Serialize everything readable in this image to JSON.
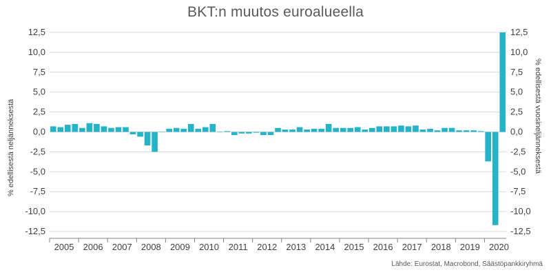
{
  "chart_data": {
    "type": "bar",
    "title": "BKT:n muutos euroalueella",
    "ylabel_left": "% edellisestä neljänneksestä",
    "ylabel_right": "% edellisestä vuosineljänneksestä",
    "source": "Lähde: Eurostat, Macrobond, Säästöpankkiryhmä",
    "ylim": [
      -12.5,
      12.5
    ],
    "yticks": [
      "12,5",
      "10,0",
      "7,5",
      "5,0",
      "2,5",
      "0,0",
      "-2,5",
      "-5,0",
      "-7,5",
      "-10,0",
      "-12,5"
    ],
    "ytick_values": [
      12.5,
      10,
      7.5,
      5,
      2.5,
      0,
      -2.5,
      -5,
      -7.5,
      -10,
      -12.5
    ],
    "x_labels": [
      "2005",
      "2006",
      "2007",
      "2008",
      "2009",
      "2010",
      "2011",
      "2012",
      "2013",
      "2014",
      "2015",
      "2016",
      "2017",
      "2018",
      "2019",
      "2020"
    ],
    "color": "#26B3C8",
    "grid": true,
    "values": [
      0.7,
      0.6,
      0.9,
      1.0,
      0.5,
      1.1,
      1.0,
      0.7,
      0.5,
      0.6,
      0.6,
      -0.3,
      -0.6,
      -1.7,
      -2.5,
      0.0,
      0.4,
      0.5,
      0.4,
      1.0,
      0.4,
      0.6,
      1.0,
      0.0,
      0.1,
      -0.4,
      -0.2,
      -0.2,
      -0.1,
      -0.4,
      -0.4,
      0.5,
      0.3,
      0.3,
      0.6,
      0.3,
      0.4,
      0.4,
      1.0,
      0.5,
      0.5,
      0.5,
      0.6,
      0.3,
      0.5,
      0.7,
      0.7,
      0.7,
      0.8,
      0.7,
      0.8,
      0.3,
      0.4,
      0.2,
      0.5,
      0.5,
      0.2,
      0.2,
      0.2,
      0.1,
      -3.7,
      -11.7,
      12.5
    ]
  }
}
